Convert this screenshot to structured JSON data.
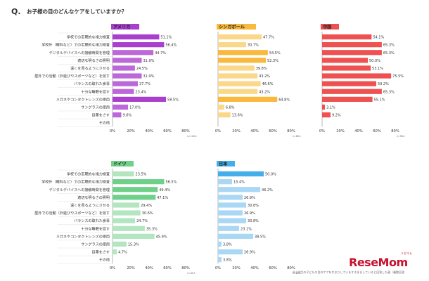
{
  "question": {
    "mark": "Q.",
    "text": "お子様の目のどんなケアをしていますか？"
  },
  "footnote": "※小学生の子どもの目のケアをかなりしていますきまましていると回答した親（複数回答",
  "logo": {
    "text": "ReseMom",
    "ruby": "リセマム"
  },
  "chart_data": [
    {
      "type": "bar",
      "orientation": "horizontal",
      "title": "アメリカ",
      "color": "#bd68d8",
      "highlight_color": "#a93fcd",
      "n_label": "n=104人",
      "categories": [
        "学校での定期的な視力検査",
        "学校外（眼科など）での定期的な視力検査",
        "デジタルデバイスへの接触時間を管理",
        "適切な明るさの照明",
        "遠くを見るようにさせる",
        "屋外での活動（外遊びやスポーツなど）を促す",
        "バランスの取れた食事",
        "十分な睡眠を促す",
        "メガネやコンタクトレンズの使用",
        "サングラスの使用",
        "目薬をさす",
        "その他"
      ],
      "values": [
        51.1,
        56.4,
        44.7,
        31.9,
        24.5,
        31.9,
        27.7,
        23.4,
        58.5,
        17.0,
        9.6,
        null
      ],
      "value_labels": [
        "51.1%",
        "56.4%",
        "44.7%",
        "31.9%",
        "24.5%",
        "31.9%",
        "27.7%",
        "23.4%",
        "58.5%",
        "17.0%",
        "9.6%",
        ""
      ],
      "highlight_top": 3,
      "xlim": [
        0,
        80
      ],
      "ticks": [
        "0%",
        "20%",
        "40%",
        "60%",
        "80%"
      ],
      "show_category_labels": true
    },
    {
      "type": "bar",
      "orientation": "horizontal",
      "title": "シンガポール",
      "color": "#fbd78a",
      "highlight_color": "#f8b93d",
      "n_label": "n=88人",
      "categories": [
        "学校での定期的な視力検査",
        "学校外（眼科など）での定期的な視力検査",
        "デジタルデバイスへの接触時間を管理",
        "適切な明るさの照明",
        "遠くを見るようにさせる",
        "屋外での活動（外遊びやスポーツなど）を促す",
        "バランスの取れた食事",
        "十分な睡眠を促す",
        "メガネやコンタクトレンズの使用",
        "サングラスの使用",
        "目薬をさす",
        "その他"
      ],
      "values": [
        47.7,
        30.7,
        54.5,
        52.3,
        39.8,
        43.2,
        46.6,
        43.2,
        64.8,
        6.8,
        13.6,
        null
      ],
      "value_labels": [
        "47.7%",
        "30.7%",
        "54.5%",
        "52.3%",
        "39.8%",
        "43.2%",
        "46.6%",
        "43.2%",
        "64.8%",
        "6.8%",
        "13.6%",
        ""
      ],
      "highlight_top": 3,
      "xlim": [
        0,
        80
      ],
      "ticks": [
        "0%",
        "20%",
        "40%",
        "60%",
        "80%"
      ],
      "show_category_labels": false
    },
    {
      "type": "bar",
      "orientation": "horizontal",
      "title": "中国",
      "color": "#f6a3a3",
      "highlight_color": "#ef5050",
      "n_label": "n=98人",
      "categories": [
        "学校での定期的な視力検査",
        "学校外（眼科など）での定期的な視力検査",
        "デジタルデバイスへの接触時間を管理",
        "適切な明るさの照明",
        "遠くを見るようにさせる",
        "屋外での活動（外遊びやスポーツなど）を促す",
        "バランスの取れた食事",
        "十分な睡眠を促す",
        "メガネやコンタクトレンズの使用",
        "サングラスの使用",
        "目薬をさす",
        "その他"
      ],
      "values": [
        54.1,
        65.3,
        65.3,
        50.0,
        53.1,
        75.5,
        59.2,
        65.3,
        55.1,
        3.1,
        9.2,
        null
      ],
      "value_labels": [
        "54.1%",
        "65.3%",
        "65.3%",
        "50.0%",
        "53.1%",
        "75.5%",
        "59.2%",
        "65.3%",
        "55.1%",
        "3.1%",
        "9.2%",
        ""
      ],
      "highlight_top": 11,
      "xlim": [
        0,
        80
      ],
      "ticks": [
        "0%",
        "20%",
        "40%",
        "60%",
        "80%"
      ],
      "show_category_labels": false
    },
    {
      "type": "bar",
      "orientation": "horizontal",
      "title": "ドイツ",
      "color": "#b3e6c0",
      "highlight_color": "#6fd08a",
      "n_label": "n=85人",
      "categories": [
        "学校での定期的な視力検査",
        "学校外（眼科など）での定期的な視力検査",
        "デジタルデバイスへの接触時間を管理",
        "適切な明るさの照明",
        "遠くを見るようにさせる",
        "屋外での活動（外遊びやスポーツなど）を促す",
        "バランスの取れた食事",
        "十分な睡眠を促す",
        "メガネやコンタクトレンズの使用",
        "サングラスの使用",
        "目薬をさす",
        "その他"
      ],
      "values": [
        23.5,
        56.5,
        49.4,
        47.1,
        29.4,
        30.6,
        24.7,
        35.3,
        45.9,
        15.3,
        4.7,
        null
      ],
      "value_labels": [
        "23.5%",
        "56.5%",
        "49.4%",
        "47.1%",
        "29.4%",
        "30.6%",
        "24.7%",
        "35.3%",
        "45.9%",
        "15.3%",
        "4.7%",
        ""
      ],
      "highlight_top": 3,
      "xlim": [
        0,
        80
      ],
      "ticks": [
        "0%",
        "20%",
        "40%",
        "60%",
        "80%"
      ],
      "show_category_labels": true
    },
    {
      "type": "bar",
      "orientation": "horizontal",
      "title": "日本",
      "color": "#a9d7f4",
      "highlight_color": "#43aee8",
      "n_label": "n=26人",
      "categories": [
        "学校での定期的な視力検査",
        "学校外（眼科など）での定期的な視力検査",
        "デジタルデバイスへの接触時間を管理",
        "適切な明るさの照明",
        "遠くを見るようにさせる",
        "屋外での活動（外遊びやスポーツなど）を促す",
        "バランスの取れた食事",
        "十分な睡眠を促す",
        "メガネやコンタクトレンズの使用",
        "サングラスの使用",
        "目薬をさす",
        "その他"
      ],
      "values": [
        50.0,
        15.4,
        46.2,
        26.9,
        30.8,
        26.9,
        30.8,
        23.1,
        38.5,
        3.8,
        26.9,
        3.8
      ],
      "value_labels": [
        "50.0%",
        "15.4%",
        "46.2%",
        "26.9%",
        "30.8%",
        "26.9%",
        "30.8%",
        "23.1%",
        "38.5%",
        "3.8%",
        "26.9%",
        "3.8%"
      ],
      "highlight_top": 1,
      "xlim": [
        0,
        80
      ],
      "ticks": [
        "0%",
        "20%",
        "40%",
        "60%",
        "80%"
      ],
      "show_category_labels": false
    }
  ]
}
